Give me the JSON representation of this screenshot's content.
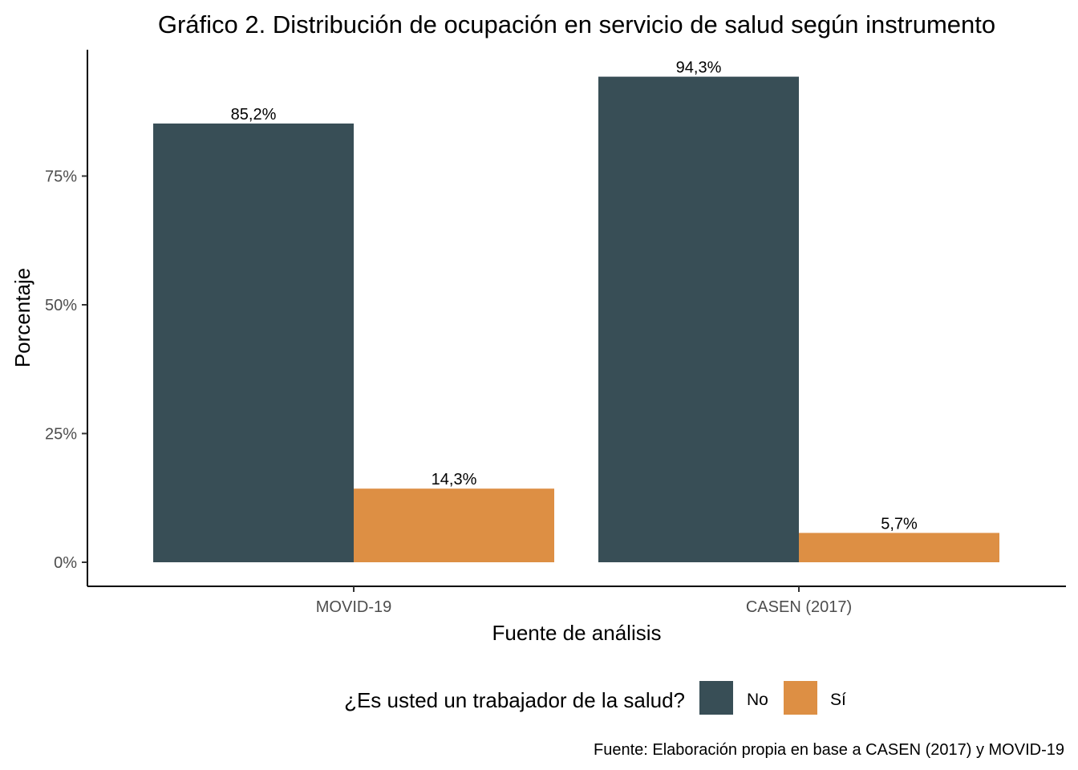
{
  "chart_data": {
    "type": "bar",
    "title": "Gráfico 2. Distribución de ocupación en servicio de salud según instrumento",
    "xlabel": "Fuente de análisis",
    "ylabel": "Porcentaje",
    "categories": [
      "MOVID-19",
      "CASEN (2017)"
    ],
    "series": [
      {
        "name": "No",
        "values": [
          85.2,
          94.3
        ],
        "labels": [
          "85,2%",
          "94,3%"
        ],
        "color": "#384e56"
      },
      {
        "name": "Sí",
        "values": [
          14.3,
          5.7
        ],
        "labels": [
          "14,3%",
          "5,7%"
        ],
        "color": "#dd8f44"
      }
    ],
    "yticks": [
      0,
      25,
      50,
      75
    ],
    "ytick_labels": [
      "0%",
      "25%",
      "50%",
      "75%"
    ],
    "ylim": [
      -4.5,
      99
    ],
    "grid": false,
    "legend": {
      "title": "¿Es usted un trabajador de la salud?",
      "position": "bottom"
    },
    "caption": "Fuente: Elaboración propia en base a CASEN (2017) y MOVID-19"
  }
}
